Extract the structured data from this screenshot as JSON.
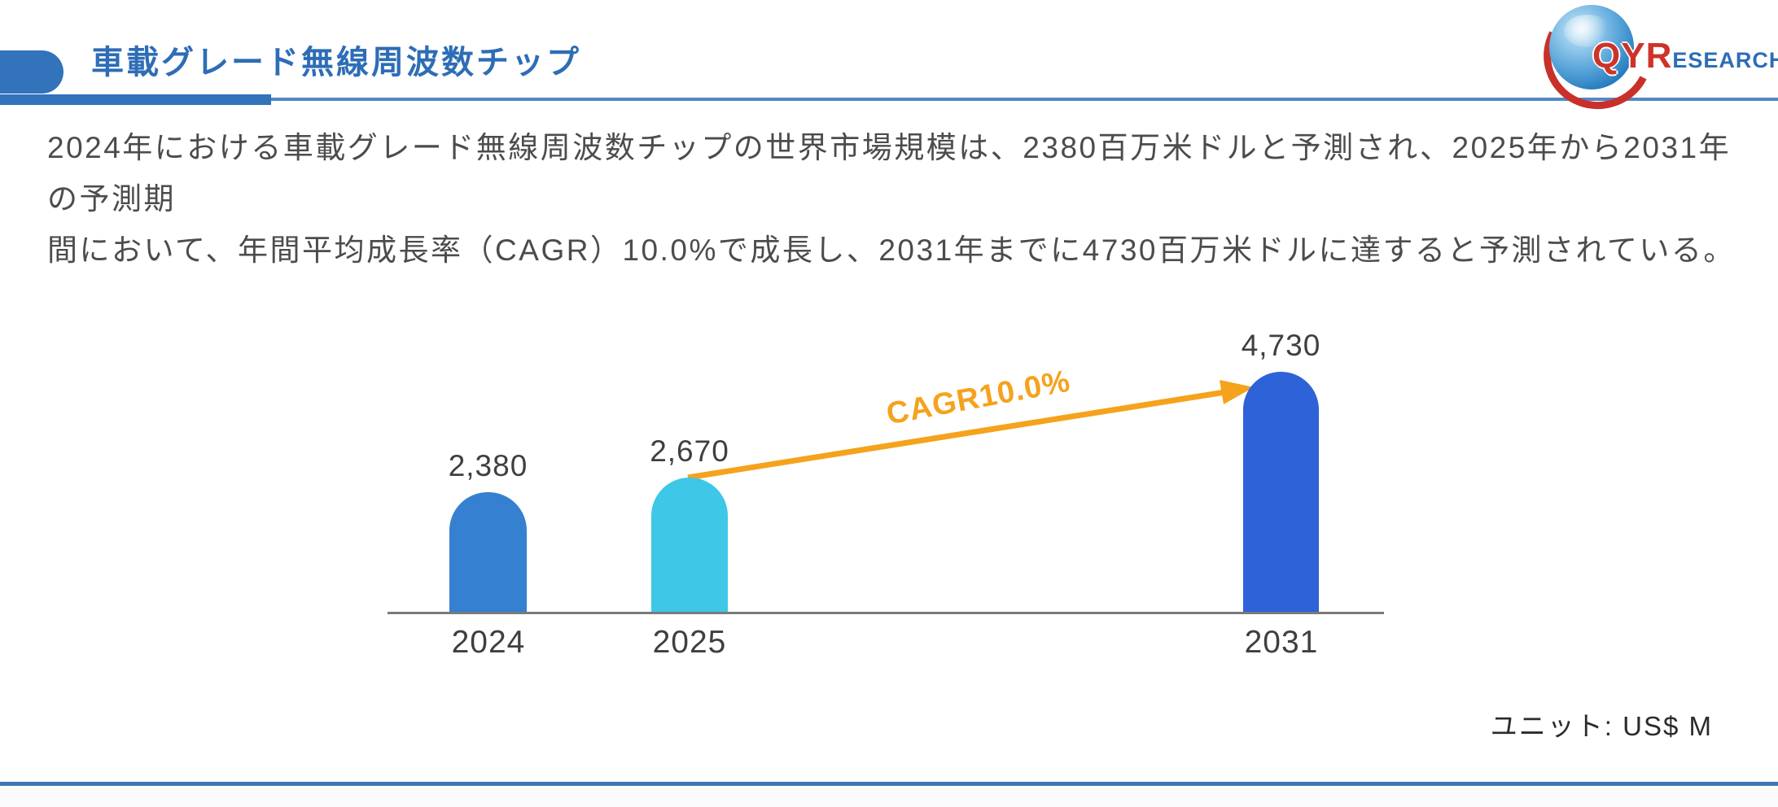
{
  "header": {
    "title": "車載グレード無線周波数チップ",
    "logo": {
      "primary": "QYR",
      "secondary": "ESEARCH"
    }
  },
  "description": {
    "line1": "2024年における車載グレード無線周波数チップの世界市場規模は、2380百万米ドルと予測され、2025年から2031年の予測期",
    "line2": "間において、年間平均成長率（CAGR）10.0%で成長し、2031年までに4730百万米ドルに達すると予測されている。"
  },
  "chart_data": {
    "type": "bar",
    "categories": [
      "2024",
      "2025",
      "2031"
    ],
    "values": [
      2380,
      2670,
      4730
    ],
    "value_labels": [
      "2,380",
      "2,670",
      "4,730"
    ],
    "cagr_label": "CAGR10.0%",
    "unit_label": "ユニット: US$ M",
    "ylim": [
      0,
      5000
    ],
    "grid": false,
    "legend": "none",
    "colors": {
      "bars": [
        "#3580D0",
        "#3EC7E6",
        "#2D62D8"
      ],
      "arrow": "#F5A21C",
      "axis": "#7A7A7A",
      "label_text": "#3F3F3F",
      "accent_blue": "#2E6DB6",
      "tab_blue": "#3273BB",
      "thin_rule_blue": "#5587C4",
      "bottom_rule_blue": "#3F76B3",
      "logo_red": "#CE3329"
    }
  }
}
